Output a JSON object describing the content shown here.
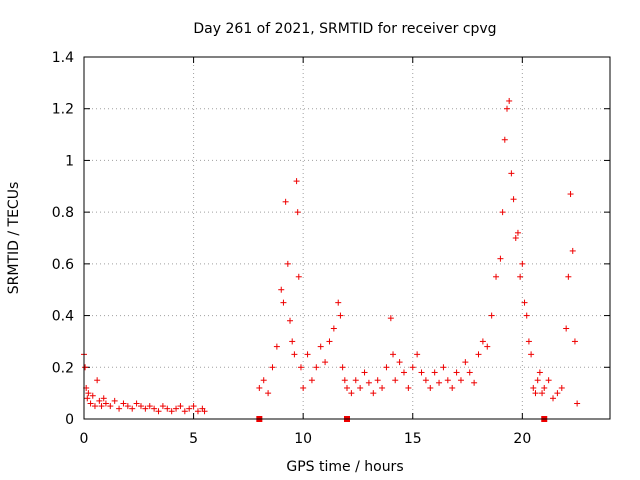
{
  "chart_data": {
    "type": "scatter",
    "title": "Day 261 of 2021, SRMTID for receiver cpvg",
    "xlabel": "GPS time / hours",
    "ylabel": "SRMTID / TECUs",
    "xlim": [
      0,
      24
    ],
    "ylim": [
      0,
      1.4
    ],
    "x_ticks": [
      0,
      5,
      10,
      15,
      20
    ],
    "x_tick_labels": [
      "0",
      "5",
      "10",
      "15",
      "20"
    ],
    "y_ticks": [
      0,
      0.2,
      0.4,
      0.6,
      0.8,
      1.0,
      1.2,
      1.4
    ],
    "y_tick_labels": [
      "0",
      "0.2",
      "0.4",
      "0.6",
      "0.8",
      "1",
      "1.2",
      "1.4"
    ],
    "grid": true,
    "series_color": "#ee0000",
    "series": [
      {
        "name": "SRMTID",
        "marker": "plus",
        "x": [
          0.0,
          0.05,
          0.1,
          0.15,
          0.2,
          0.3,
          0.4,
          0.5,
          0.6,
          0.7,
          0.8,
          0.9,
          1.0,
          1.2,
          1.4,
          1.6,
          1.8,
          2.0,
          2.2,
          2.4,
          2.6,
          2.8,
          3.0,
          3.2,
          3.4,
          3.6,
          3.8,
          4.0,
          4.2,
          4.4,
          4.6,
          4.8,
          5.0,
          5.2,
          5.4,
          5.5,
          8.0,
          8.2,
          8.4,
          8.6,
          8.8,
          9.0,
          9.1,
          9.2,
          9.3,
          9.4,
          9.5,
          9.6,
          9.7,
          9.75,
          9.8,
          9.9,
          10.0,
          10.2,
          10.4,
          10.6,
          10.8,
          11.0,
          11.2,
          11.4,
          11.6,
          11.7,
          11.8,
          11.9,
          12.0,
          12.2,
          12.4,
          12.6,
          12.8,
          13.0,
          13.2,
          13.4,
          13.6,
          13.8,
          14.0,
          14.1,
          14.2,
          14.4,
          14.6,
          14.8,
          15.0,
          15.2,
          15.4,
          15.6,
          15.8,
          16.0,
          16.2,
          16.4,
          16.6,
          16.8,
          17.0,
          17.2,
          17.4,
          17.6,
          17.8,
          18.0,
          18.2,
          18.4,
          18.6,
          18.8,
          19.0,
          19.1,
          19.2,
          19.3,
          19.4,
          19.5,
          19.6,
          19.7,
          19.8,
          19.9,
          20.0,
          20.1,
          20.2,
          20.3,
          20.4,
          20.5,
          20.6,
          20.7,
          20.8,
          20.9,
          21.0,
          21.2,
          21.4,
          21.6,
          21.8,
          22.0,
          22.1,
          22.2,
          22.3,
          22.4,
          22.5
        ],
        "y": [
          0.25,
          0.2,
          0.12,
          0.08,
          0.1,
          0.06,
          0.09,
          0.05,
          0.15,
          0.07,
          0.05,
          0.08,
          0.06,
          0.05,
          0.07,
          0.04,
          0.06,
          0.05,
          0.04,
          0.06,
          0.05,
          0.04,
          0.05,
          0.04,
          0.03,
          0.05,
          0.04,
          0.03,
          0.04,
          0.05,
          0.03,
          0.04,
          0.05,
          0.03,
          0.04,
          0.03,
          0.12,
          0.15,
          0.1,
          0.2,
          0.28,
          0.5,
          0.45,
          0.84,
          0.6,
          0.38,
          0.3,
          0.25,
          0.92,
          0.8,
          0.55,
          0.2,
          0.12,
          0.25,
          0.15,
          0.2,
          0.28,
          0.22,
          0.3,
          0.35,
          0.45,
          0.4,
          0.2,
          0.15,
          0.12,
          0.1,
          0.15,
          0.12,
          0.18,
          0.14,
          0.1,
          0.15,
          0.12,
          0.2,
          0.39,
          0.25,
          0.15,
          0.22,
          0.18,
          0.12,
          0.2,
          0.25,
          0.18,
          0.15,
          0.12,
          0.18,
          0.14,
          0.2,
          0.15,
          0.12,
          0.18,
          0.15,
          0.22,
          0.18,
          0.14,
          0.25,
          0.3,
          0.28,
          0.4,
          0.55,
          0.62,
          0.8,
          1.08,
          1.2,
          1.23,
          0.95,
          0.85,
          0.7,
          0.72,
          0.55,
          0.6,
          0.45,
          0.4,
          0.3,
          0.25,
          0.12,
          0.1,
          0.15,
          0.18,
          0.1,
          0.12,
          0.15,
          0.08,
          0.1,
          0.12,
          0.35,
          0.55,
          0.87,
          0.65,
          0.3,
          0.06
        ]
      }
    ],
    "zero_markers_x": [
      8.0,
      12.0,
      21.0
    ]
  }
}
